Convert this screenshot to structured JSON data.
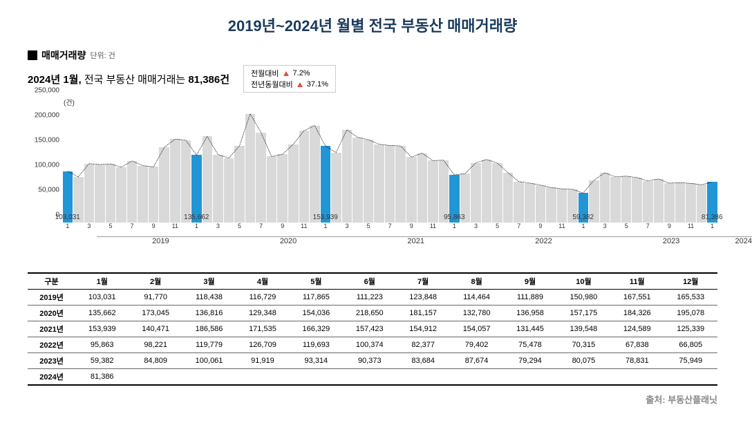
{
  "title": "2019년~2024년 월별 전국 부동산 매매거래량",
  "legend": {
    "label": "매매거래량",
    "unit": "단위: 건"
  },
  "summary": {
    "prefix": "2024년 1월, ",
    "mid": "전국 부동산 매매거래는 ",
    "value": "81,386건"
  },
  "stats": [
    {
      "label": "전월대비",
      "direction": "up",
      "pct": "7.2%"
    },
    {
      "label": "전년동월대비",
      "direction": "up",
      "pct": "37.1%"
    }
  ],
  "chart": {
    "type": "bar+line",
    "ylim": [
      0,
      250000
    ],
    "yticks": [
      0,
      50000,
      100000,
      150000,
      200000,
      250000
    ],
    "ytick_labels": [
      "0",
      "50,000",
      "100,000",
      "150,000",
      "200,000",
      "250,000"
    ],
    "y_unit": "(건)",
    "colors": {
      "bar_gray": "#d9d9d9",
      "bar_blue": "#2196d6",
      "line": "#000000",
      "bg": "#ffffff"
    },
    "highlight_labels": [
      {
        "idx": 0,
        "text": "103,031"
      },
      {
        "idx": 12,
        "text": "135,662"
      },
      {
        "idx": 24,
        "text": "153,939"
      },
      {
        "idx": 36,
        "text": "95,863"
      },
      {
        "idx": 48,
        "text": "59,382"
      },
      {
        "idx": 60,
        "text": "81,386"
      }
    ],
    "years": [
      "2019",
      "2020",
      "2021",
      "2022",
      "2023",
      "2024"
    ],
    "year_spans": [
      12,
      12,
      12,
      12,
      12,
      1
    ],
    "x_ticks": [
      1,
      3,
      5,
      7,
      9,
      11,
      1,
      3,
      5,
      7,
      9,
      11,
      1,
      3,
      5,
      7,
      9,
      11,
      1,
      3,
      5,
      7,
      9,
      11,
      1,
      3,
      5,
      7,
      9,
      11,
      1
    ],
    "values": [
      103031,
      91770,
      118438,
      116729,
      117865,
      111223,
      123848,
      114464,
      111889,
      150980,
      167551,
      165533,
      135662,
      173045,
      136816,
      129348,
      154036,
      218650,
      181157,
      132780,
      136958,
      157175,
      184326,
      195078,
      153939,
      140471,
      186586,
      171535,
      166329,
      157423,
      154912,
      154057,
      131445,
      139548,
      124589,
      125339,
      95863,
      98221,
      119779,
      126709,
      119693,
      100374,
      82377,
      79402,
      75478,
      70315,
      67838,
      66805,
      59382,
      84809,
      100061,
      91919,
      93314,
      90373,
      83684,
      87674,
      79294,
      80075,
      78831,
      75949,
      81386
    ]
  },
  "table": {
    "header_first": "구분",
    "months": [
      "1월",
      "2월",
      "3월",
      "4월",
      "5월",
      "6월",
      "7월",
      "8월",
      "9월",
      "10월",
      "11월",
      "12월"
    ],
    "rows": [
      {
        "label": "2019년",
        "cells": [
          "103,031",
          "91,770",
          "118,438",
          "116,729",
          "117,865",
          "111,223",
          "123,848",
          "114,464",
          "111,889",
          "150,980",
          "167,551",
          "165,533"
        ]
      },
      {
        "label": "2020년",
        "cells": [
          "135,662",
          "173,045",
          "136,816",
          "129,348",
          "154,036",
          "218,650",
          "181,157",
          "132,780",
          "136,958",
          "157,175",
          "184,326",
          "195,078"
        ]
      },
      {
        "label": "2021년",
        "cells": [
          "153,939",
          "140,471",
          "186,586",
          "171,535",
          "166,329",
          "157,423",
          "154,912",
          "154,057",
          "131,445",
          "139,548",
          "124,589",
          "125,339"
        ]
      },
      {
        "label": "2022년",
        "cells": [
          "95,863",
          "98,221",
          "119,779",
          "126,709",
          "119,693",
          "100,374",
          "82,377",
          "79,402",
          "75,478",
          "70,315",
          "67,838",
          "66,805"
        ]
      },
      {
        "label": "2023년",
        "cells": [
          "59,382",
          "84,809",
          "100,061",
          "91,919",
          "93,314",
          "90,373",
          "83,684",
          "87,674",
          "79,294",
          "80,075",
          "78,831",
          "75,949"
        ]
      },
      {
        "label": "2024년",
        "cells": [
          "81,386",
          "",
          "",
          "",
          "",
          "",
          "",
          "",
          "",
          "",
          "",
          ""
        ]
      }
    ]
  },
  "source": "출처: 부동산플래닛"
}
